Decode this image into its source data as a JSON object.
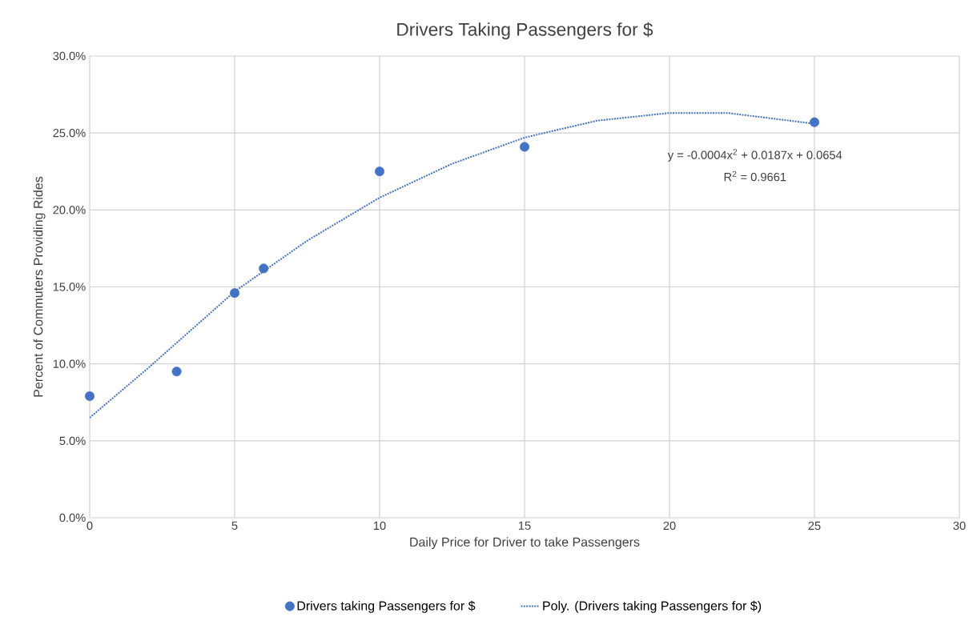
{
  "chart_data": {
    "type": "scatter",
    "title": "Drivers Taking Passengers for $",
    "xlabel": "Daily Price for Driver to take Passengers",
    "ylabel": "Percent of Commuters Providing Rides",
    "x": [
      0,
      3,
      5,
      6,
      10,
      15,
      25
    ],
    "series": [
      {
        "name": "Drivers taking Passengers for $",
        "color": "#4472c4",
        "values": [
          7.9,
          9.5,
          14.6,
          16.2,
          22.5,
          24.1,
          25.7
        ],
        "marker": "circle"
      },
      {
        "name": "Poly. (Drivers taking Passengers for $)",
        "type": "line",
        "color": "#4472c4",
        "line_style": "dotted",
        "marker": "none",
        "x": [
          0,
          2,
          5,
          7.5,
          10,
          12.5,
          15,
          17.5,
          20,
          22,
          25
        ],
        "values": [
          6.5,
          9.7,
          14.7,
          18.0,
          20.8,
          23.0,
          24.7,
          25.8,
          26.3,
          26.3,
          25.6
        ]
      }
    ],
    "xlim": [
      0,
      30
    ],
    "xticks": [
      0,
      5,
      10,
      15,
      20,
      25,
      30
    ],
    "ylim": [
      0,
      30
    ],
    "yticks": [
      {
        "value": 0,
        "label": "0.0%"
      },
      {
        "value": 5,
        "label": "5.0%"
      },
      {
        "value": 10,
        "label": "10.0%"
      },
      {
        "value": 15,
        "label": "15.0%"
      },
      {
        "value": 20,
        "label": "20.0%"
      },
      {
        "value": 25,
        "label": "25.0%"
      },
      {
        "value": 30,
        "label": "30.0%"
      }
    ],
    "annotations": [
      "y = -0.0004x$^{2}$ + 0.0187x + 0.0654",
      "R$^{2}$ = 0.9661"
    ],
    "grid": true,
    "legend": "bottom"
  }
}
